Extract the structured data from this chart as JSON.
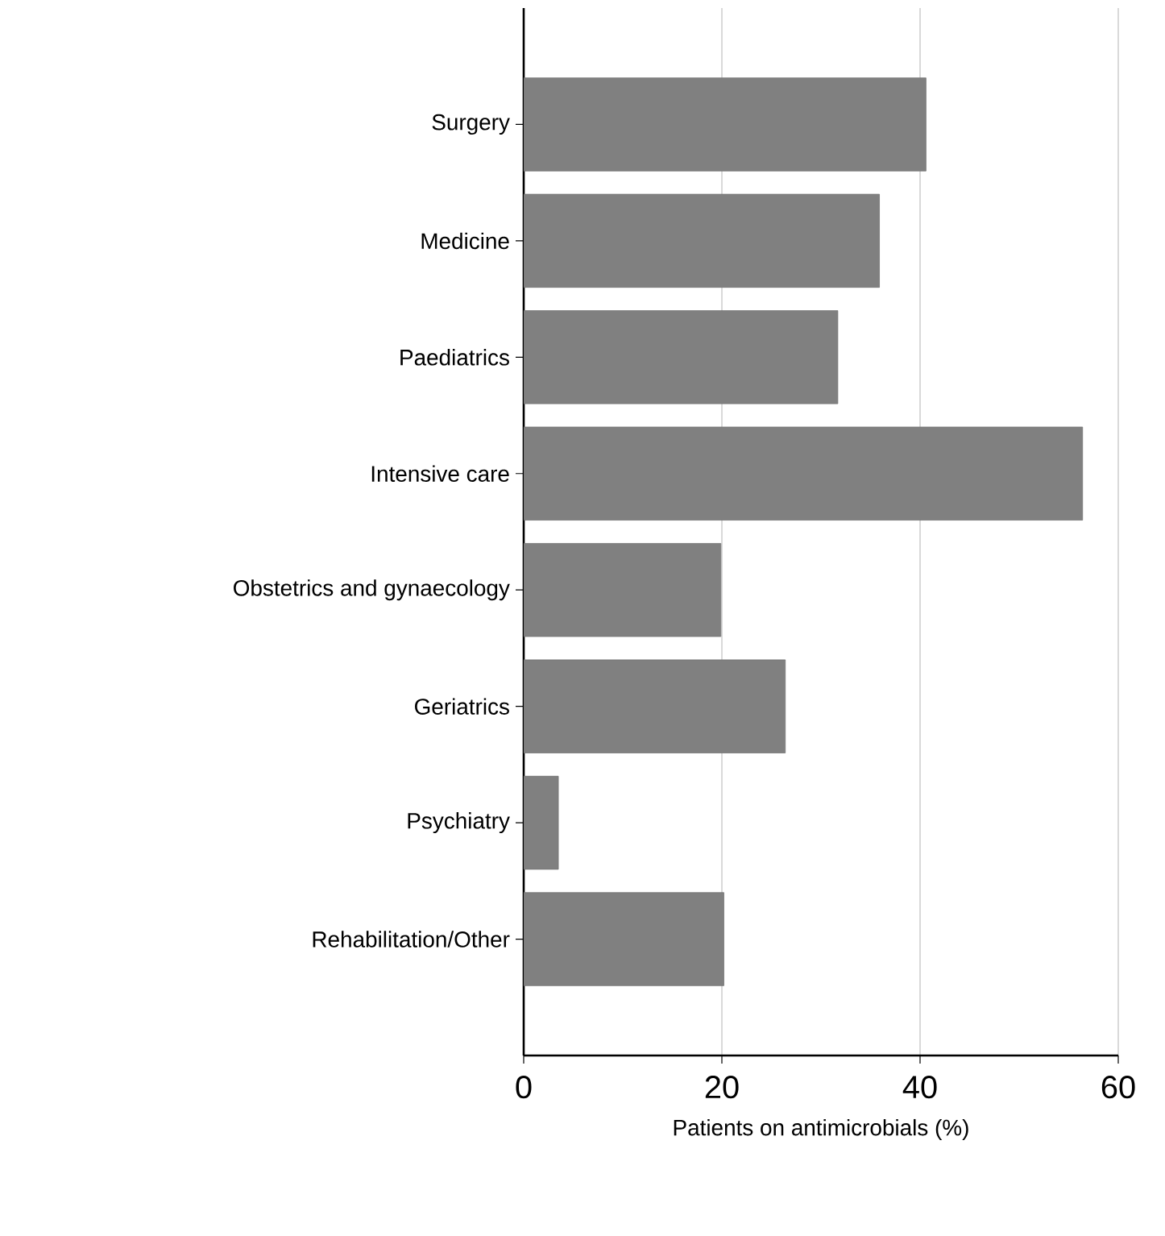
{
  "chart_data": {
    "type": "bar",
    "orientation": "horizontal",
    "categories": [
      "Surgery",
      "Medicine",
      "Paediatrics",
      "Intensive care",
      "Obstetrics and gynaecology",
      "Geriatrics",
      "Psychiatry",
      "Rehabilitation/Other"
    ],
    "values": [
      40.6,
      35.9,
      31.7,
      56.4,
      19.9,
      26.4,
      3.5,
      20.2
    ],
    "color": "#808080",
    "xlim": [
      0,
      60
    ],
    "xticks": [
      0,
      20,
      40,
      60
    ],
    "xlabel": "Patients on antimicrobials  (%)",
    "grid": "x"
  }
}
